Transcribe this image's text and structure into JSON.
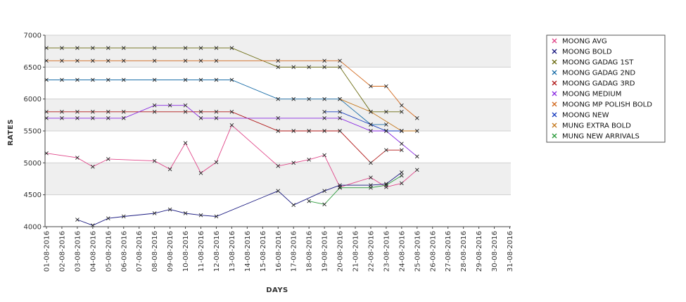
{
  "chart_data": {
    "type": "line",
    "xlabel": "DAYS",
    "ylabel": "RATES",
    "ylim": [
      4000,
      7000
    ],
    "yticks": [
      4000,
      4500,
      5000,
      5500,
      6000,
      6500,
      7000
    ],
    "grid": "alternating horizontal bands",
    "legend_position": "right",
    "x": [
      "01-08-2016",
      "02-08-2016",
      "03-08-2016",
      "04-08-2016",
      "05-08-2016",
      "06-08-2016",
      "07-08-2016",
      "08-08-2016",
      "09-08-2016",
      "10-08-2016",
      "11-08-2016",
      "12-08-2016",
      "13-08-2016",
      "14-08-2016",
      "15-08-2016",
      "16-08-2016",
      "17-08-2016",
      "18-08-2016",
      "19-08-2016",
      "20-08-2016",
      "21-08-2016",
      "22-08-2016",
      "23-08-2016",
      "24-08-2016",
      "25-08-2016",
      "26-08-2016",
      "27-08-2016",
      "28-08-2016",
      "29-08-2016",
      "30-08-2016",
      "31-08-2016"
    ],
    "series": [
      {
        "name": "MOONG AVG",
        "color": "#e0488a",
        "points": [
          [
            1,
            5150
          ],
          [
            3,
            5080
          ],
          [
            4,
            4940
          ],
          [
            5,
            5060
          ],
          [
            8,
            5030
          ],
          [
            9,
            4900
          ],
          [
            10,
            5310
          ],
          [
            11,
            4840
          ],
          [
            12,
            5010
          ],
          [
            13,
            5590
          ],
          [
            16,
            4950
          ],
          [
            17,
            5000
          ],
          [
            18,
            5050
          ],
          [
            19,
            5120
          ],
          [
            20,
            4620
          ],
          [
            22,
            4770
          ],
          [
            23,
            4620
          ],
          [
            24,
            4680
          ],
          [
            25,
            4890
          ]
        ]
      },
      {
        "name": "MOONG BOLD",
        "color": "#1a1a80",
        "points": [
          [
            3,
            4110
          ],
          [
            4,
            4020
          ],
          [
            5,
            4130
          ],
          [
            6,
            4160
          ],
          [
            8,
            4210
          ],
          [
            9,
            4270
          ],
          [
            10,
            4210
          ],
          [
            11,
            4180
          ],
          [
            12,
            4160
          ],
          [
            16,
            4560
          ],
          [
            17,
            4340
          ],
          [
            19,
            4560
          ],
          [
            20,
            4650
          ],
          [
            22,
            4650
          ],
          [
            23,
            4670
          ],
          [
            24,
            4850
          ]
        ]
      },
      {
        "name": "MOONG GADAG 1ST",
        "color": "#6b6b10",
        "points": [
          [
            1,
            6800
          ],
          [
            2,
            6800
          ],
          [
            3,
            6800
          ],
          [
            4,
            6800
          ],
          [
            5,
            6800
          ],
          [
            6,
            6800
          ],
          [
            8,
            6800
          ],
          [
            10,
            6800
          ],
          [
            11,
            6800
          ],
          [
            12,
            6800
          ],
          [
            13,
            6800
          ],
          [
            16,
            6500
          ],
          [
            17,
            6500
          ],
          [
            18,
            6500
          ],
          [
            19,
            6500
          ],
          [
            20,
            6500
          ],
          [
            22,
            5800
          ],
          [
            23,
            5800
          ],
          [
            24,
            5800
          ]
        ]
      },
      {
        "name": "MOONG GADAG 2ND",
        "color": "#1b6ea8",
        "points": [
          [
            1,
            6300
          ],
          [
            2,
            6300
          ],
          [
            3,
            6300
          ],
          [
            4,
            6300
          ],
          [
            5,
            6300
          ],
          [
            6,
            6300
          ],
          [
            8,
            6300
          ],
          [
            10,
            6300
          ],
          [
            11,
            6300
          ],
          [
            12,
            6300
          ],
          [
            13,
            6300
          ],
          [
            16,
            6000
          ],
          [
            17,
            6000
          ],
          [
            18,
            6000
          ],
          [
            19,
            6000
          ],
          [
            20,
            6000
          ],
          [
            22,
            5600
          ],
          [
            23,
            5600
          ]
        ]
      },
      {
        "name": "MOONG GADAG 3RD",
        "color": "#b01818",
        "points": [
          [
            1,
            5800
          ],
          [
            2,
            5800
          ],
          [
            3,
            5800
          ],
          [
            4,
            5800
          ],
          [
            5,
            5800
          ],
          [
            6,
            5800
          ],
          [
            8,
            5800
          ],
          [
            10,
            5800
          ],
          [
            11,
            5800
          ],
          [
            12,
            5800
          ],
          [
            13,
            5800
          ],
          [
            16,
            5500
          ],
          [
            17,
            5500
          ],
          [
            18,
            5500
          ],
          [
            19,
            5500
          ],
          [
            20,
            5500
          ],
          [
            22,
            5000
          ],
          [
            23,
            5200
          ],
          [
            24,
            5200
          ]
        ]
      },
      {
        "name": "MOONG MEDIUM",
        "color": "#8a2be2",
        "points": [
          [
            1,
            5700
          ],
          [
            2,
            5700
          ],
          [
            3,
            5700
          ],
          [
            4,
            5700
          ],
          [
            5,
            5700
          ],
          [
            6,
            5700
          ],
          [
            8,
            5900
          ],
          [
            9,
            5900
          ],
          [
            10,
            5900
          ],
          [
            11,
            5700
          ],
          [
            12,
            5700
          ],
          [
            16,
            5700
          ],
          [
            19,
            5700
          ],
          [
            20,
            5700
          ],
          [
            22,
            5500
          ],
          [
            23,
            5500
          ],
          [
            24,
            5300
          ],
          [
            25,
            5100
          ]
        ]
      },
      {
        "name": "MOONG MP POLISH BOLD",
        "color": "#d2691e",
        "points": [
          [
            1,
            6600
          ],
          [
            2,
            6600
          ],
          [
            3,
            6600
          ],
          [
            4,
            6600
          ],
          [
            5,
            6600
          ],
          [
            6,
            6600
          ],
          [
            8,
            6600
          ],
          [
            10,
            6600
          ],
          [
            11,
            6600
          ],
          [
            12,
            6600
          ],
          [
            16,
            6600
          ],
          [
            19,
            6600
          ],
          [
            20,
            6600
          ],
          [
            22,
            6200
          ],
          [
            23,
            6200
          ],
          [
            24,
            5900
          ],
          [
            25,
            5700
          ]
        ]
      },
      {
        "name": "MOONG NEW",
        "color": "#1a3fc0",
        "points": [
          [
            19,
            5800
          ],
          [
            20,
            5800
          ],
          [
            22,
            5600
          ],
          [
            23,
            5500
          ],
          [
            24,
            5500
          ]
        ]
      },
      {
        "name": "MUNG EXTRA BOLD",
        "color": "#c57a20",
        "points": [
          [
            20,
            6000
          ],
          [
            22,
            5800
          ],
          [
            24,
            5500
          ],
          [
            25,
            5500
          ]
        ]
      },
      {
        "name": "MUNG NEW ARRIVALS",
        "color": "#2a9a3a",
        "points": [
          [
            18,
            4400
          ],
          [
            19,
            4350
          ],
          [
            20,
            4610
          ],
          [
            22,
            4610
          ],
          [
            23,
            4650
          ],
          [
            24,
            4800
          ]
        ]
      }
    ]
  }
}
